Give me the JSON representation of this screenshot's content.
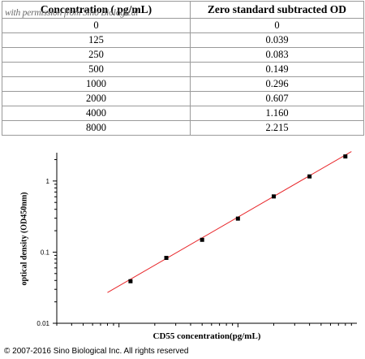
{
  "table": {
    "headers": [
      "Concentration ( pg/mL)",
      "Zero standard subtracted OD"
    ],
    "rows": [
      [
        "0",
        "0"
      ],
      [
        "125",
        "0.039"
      ],
      [
        "250",
        "0.083"
      ],
      [
        "500",
        "0.149"
      ],
      [
        "1000",
        "0.296"
      ],
      [
        "2000",
        "0.607"
      ],
      [
        "4000",
        "1.160"
      ],
      [
        "8000",
        "2.215"
      ]
    ]
  },
  "watermark": "with permission from Sino Biological",
  "copyright": "© 2007-2016 Sino Biological Inc. All rights reserved",
  "chart_data": {
    "type": "scatter",
    "x": [
      125,
      250,
      500,
      1000,
      2000,
      4000,
      8000
    ],
    "y": [
      0.039,
      0.083,
      0.149,
      0.296,
      0.607,
      1.16,
      2.215
    ],
    "xlabel": "CD55   concentration(pg/mL)",
    "ylabel": "optical density (OD450nm)",
    "xscale": "log",
    "yscale": "log",
    "xlim": [
      30,
      10000
    ],
    "ylim": [
      0.01,
      2.5
    ],
    "xticks": [
      "100",
      "1000"
    ],
    "yticks": [
      "0.01",
      "0.1",
      "1"
    ],
    "grid": false,
    "fit_line": {
      "x": [
        80,
        9000
      ],
      "y": [
        0.027,
        2.6
      ]
    },
    "marker_color": "#000000",
    "fit_color": "#e8262a"
  }
}
